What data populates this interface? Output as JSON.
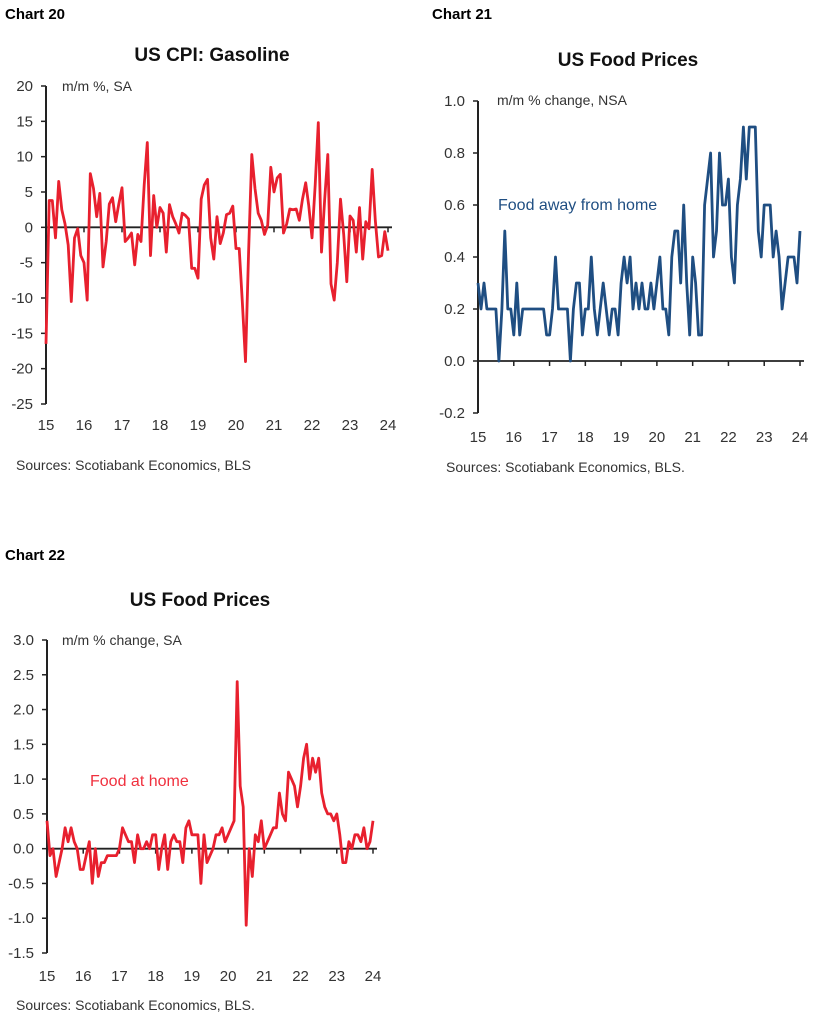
{
  "charts": [
    {
      "number": "Chart 20",
      "title": "US CPI: Gasoline",
      "unit": "m/m %, SA",
      "series_label": "",
      "source": "Sources: Scotiabank Economics, BLS"
    },
    {
      "number": "Chart 21",
      "title": "US Food Prices",
      "unit": "m/m % change, NSA",
      "series_label": "Food away from home",
      "source": "Sources: Scotiabank Economics, BLS."
    },
    {
      "number": "Chart 22",
      "title": "US Food Prices",
      "unit": "m/m % change, SA",
      "series_label": "Food at home",
      "source": "Sources: Scotiabank Economics, BLS."
    }
  ],
  "chart_data": [
    {
      "type": "line",
      "title": "US CPI: Gasoline",
      "ylabel": "m/m %, SA",
      "xlabel": "",
      "ylim": [
        -25,
        20
      ],
      "yticks": [
        "20",
        "15",
        "10",
        "5",
        "0",
        "-5",
        "-10",
        "-15",
        "-20",
        "-25"
      ],
      "xticks": [
        "15",
        "16",
        "17",
        "18",
        "19",
        "20",
        "21",
        "22",
        "23",
        "24"
      ],
      "xlim": [
        "2015-01",
        "2024-01"
      ],
      "grid": false,
      "color": "#e8202e",
      "series": [
        {
          "values": [
            -16.5,
            3.8,
            3.8,
            -1.5,
            6.5,
            2.5,
            0.5,
            -2.5,
            -10.5,
            -1.5,
            -0.2,
            -4,
            -5,
            -10.3,
            7.6,
            5.5,
            1.5,
            4.8,
            -5.6,
            -2,
            3.3,
            4.2,
            0.8,
            3.3,
            5.6,
            -2,
            -1.5,
            -0.8,
            -5.3,
            -1,
            -2,
            6,
            12,
            -4,
            4.5,
            0,
            2.8,
            2,
            -3.5,
            3.2,
            1.5,
            0.5,
            -0.8,
            2,
            1.7,
            1.2,
            -5.8,
            -5.8,
            -7.2,
            4,
            6,
            6.8,
            -1.5,
            -4.5,
            1.5,
            -2.3,
            -0.8,
            1.8,
            2,
            3,
            -3,
            -3,
            -10.5,
            -19,
            -3,
            10.3,
            5.5,
            2,
            1,
            -1,
            0.3,
            8.5,
            5,
            7,
            7.5,
            -0.8,
            0.5,
            2.6,
            2.5,
            2.6,
            1,
            4,
            6.3,
            3,
            -1.5,
            6,
            14.8,
            -3.5,
            4,
            10.3,
            -8,
            -10.3,
            -5,
            4,
            -1,
            -7.7,
            1.6,
            1,
            -3.5,
            2.8,
            -4.5,
            0.8,
            -0.2,
            8.2,
            1,
            -4.2,
            -4,
            -0.6,
            -3.3
          ]
        }
      ]
    },
    {
      "type": "line",
      "title": "US Food Prices",
      "ylabel": "m/m % change, NSA",
      "xlabel": "",
      "ylim": [
        -0.2,
        1.0
      ],
      "yticks": [
        "1.0",
        "0.8",
        "0.6",
        "0.4",
        "0.2",
        "0.0",
        "-0.2"
      ],
      "xticks": [
        "15",
        "16",
        "17",
        "18",
        "19",
        "20",
        "21",
        "22",
        "23",
        "24"
      ],
      "xlim": [
        "2015-01",
        "2024-01"
      ],
      "grid": false,
      "color": "#1f4e82",
      "series": [
        {
          "name": "Food away from home",
          "values": [
            0.3,
            0.2,
            0.3,
            0.2,
            0.2,
            0.2,
            0.2,
            0,
            0.2,
            0.5,
            0.2,
            0.2,
            0.1,
            0.3,
            0.1,
            0.2,
            0.2,
            0.2,
            0.2,
            0.2,
            0.2,
            0.2,
            0.2,
            0.1,
            0.1,
            0.2,
            0.4,
            0.2,
            0.2,
            0.2,
            0.2,
            0,
            0.2,
            0.3,
            0.3,
            0.1,
            0.2,
            0.2,
            0.4,
            0.2,
            0.1,
            0.2,
            0.3,
            0.2,
            0.1,
            0.2,
            0.2,
            0.1,
            0.3,
            0.4,
            0.3,
            0.4,
            0.2,
            0.3,
            0.2,
            0.3,
            0.2,
            0.2,
            0.3,
            0.2,
            0.3,
            0.4,
            0.2,
            0.2,
            0.1,
            0.4,
            0.5,
            0.5,
            0.3,
            0.6,
            0.3,
            0.1,
            0.4,
            0.3,
            0.1,
            0.1,
            0.6,
            0.7,
            0.8,
            0.4,
            0.5,
            0.8,
            0.6,
            0.6,
            0.7,
            0.4,
            0.3,
            0.6,
            0.7,
            0.9,
            0.7,
            0.9,
            0.9,
            0.9,
            0.5,
            0.4,
            0.6,
            0.6,
            0.6,
            0.4,
            0.5,
            0.4,
            0.2,
            0.3,
            0.4,
            0.4,
            0.4,
            0.3,
            0.5
          ]
        }
      ]
    },
    {
      "type": "line",
      "title": "US Food Prices",
      "ylabel": "m/m % change, SA",
      "xlabel": "",
      "ylim": [
        -1.5,
        3.0
      ],
      "yticks": [
        "3.0",
        "2.5",
        "2.0",
        "1.5",
        "1.0",
        "0.5",
        "0.0",
        "-0.5",
        "-1.0",
        "-1.5"
      ],
      "xticks": [
        "15",
        "16",
        "17",
        "18",
        "19",
        "20",
        "21",
        "22",
        "23",
        "24"
      ],
      "xlim": [
        "2015-01",
        "2024-01"
      ],
      "grid": false,
      "color": "#e8202e",
      "series": [
        {
          "name": "Food at home",
          "values": [
            0.4,
            -0.1,
            0,
            -0.4,
            -0.2,
            0,
            0.3,
            0.1,
            0.3,
            0.1,
            0,
            -0.3,
            -0.3,
            -0.1,
            0.1,
            -0.5,
            0,
            -0.4,
            -0.2,
            -0.2,
            -0.1,
            -0.1,
            -0.1,
            -0.1,
            0,
            0.3,
            0.2,
            0.1,
            0.1,
            -0.2,
            0.2,
            0,
            0,
            0.1,
            0,
            0.2,
            0.2,
            -0.3,
            0,
            0.2,
            -0.3,
            0.1,
            0.2,
            0.1,
            0.1,
            -0.2,
            0.3,
            0.4,
            0.2,
            0.2,
            0.2,
            -0.5,
            0.2,
            -0.2,
            -0.1,
            0,
            0.2,
            0.2,
            0.3,
            0.1,
            0.2,
            0.3,
            0.4,
            2.4,
            0.9,
            0.6,
            -1.1,
            0,
            -0.4,
            0.2,
            0.1,
            0.4,
            0,
            0.1,
            0.2,
            0.3,
            0.3,
            0.8,
            0.5,
            0.4,
            1.1,
            1.0,
            0.9,
            0.6,
            0.9,
            1.3,
            1.5,
            1.0,
            1.3,
            1.1,
            1.3,
            0.8,
            0.6,
            0.5,
            0.5,
            0.4,
            0.5,
            0.2,
            -0.2,
            -0.2,
            0.1,
            0,
            0.2,
            0.2,
            0.1,
            0.3,
            0,
            0.1,
            0.4
          ]
        }
      ]
    }
  ]
}
